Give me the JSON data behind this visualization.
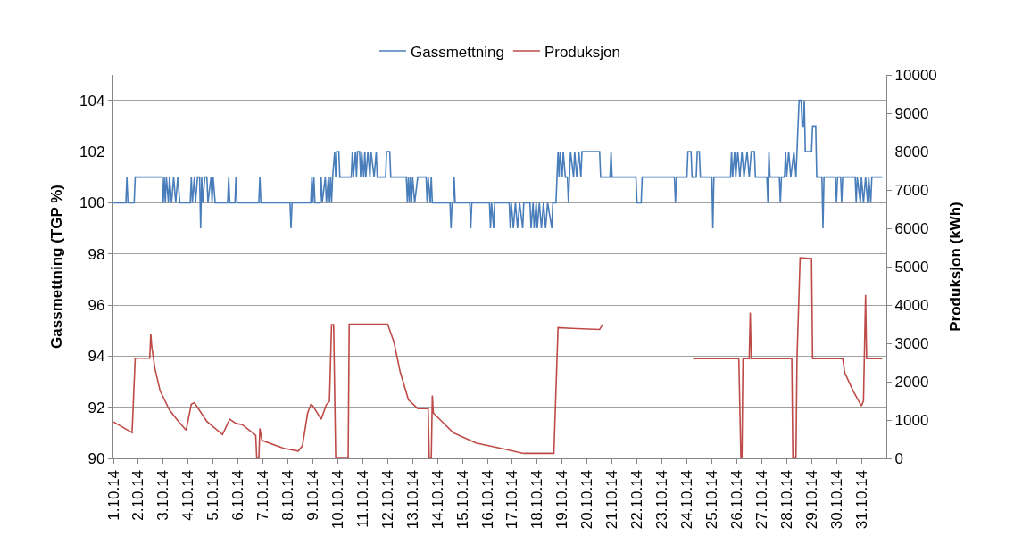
{
  "chart_data": {
    "type": "line",
    "ylabel": "Gassmettning (TGP %)",
    "y2label": "Produksjon (kWh)",
    "xlim": [
      "--10-01",
      "--11-01"
    ],
    "ylim": [
      90,
      105
    ],
    "y2lim": [
      0,
      10000
    ],
    "yticks": [
      90,
      92,
      94,
      96,
      98,
      100,
      102,
      104
    ],
    "y2ticks": [
      0,
      1000,
      2000,
      3000,
      4000,
      5000,
      6000,
      7000,
      8000,
      9000,
      10000
    ],
    "xticks": [
      {
        "value": "--10-01",
        "label": "1.10.14"
      },
      {
        "value": "--10-02",
        "label": "2.10.14"
      },
      {
        "value": "--10-03",
        "label": "3.10.14"
      },
      {
        "value": "--10-04",
        "label": "4.10.14"
      },
      {
        "value": "--10-05",
        "label": "5.10.14"
      },
      {
        "value": "--10-06",
        "label": "6.10.14"
      },
      {
        "value": "--10-07",
        "label": "7.10.14"
      },
      {
        "value": "--10-08",
        "label": "8.10.14"
      },
      {
        "value": "--10-09",
        "label": "9.10.14"
      },
      {
        "value": "--10-10",
        "label": "10.10.14"
      },
      {
        "value": "--10-11",
        "label": "11.10.14"
      },
      {
        "value": "--10-12",
        "label": "12.10.14"
      },
      {
        "value": "--10-13",
        "label": "13.10.14"
      },
      {
        "value": "--10-14",
        "label": "14.10.14"
      },
      {
        "value": "--10-15",
        "label": "15.10.14"
      },
      {
        "value": "--10-16",
        "label": "16.10.14"
      },
      {
        "value": "--10-17",
        "label": "17.10.14"
      },
      {
        "value": "--10-18",
        "label": "18.10.14"
      },
      {
        "value": "--10-19",
        "label": "19.10.14"
      },
      {
        "value": "--10-20",
        "label": "20.10.14"
      },
      {
        "value": "--10-21",
        "label": "21.10.14"
      },
      {
        "value": "--10-22",
        "label": "22.10.14"
      },
      {
        "value": "--10-23",
        "label": "23.10.14"
      },
      {
        "value": "--10-24",
        "label": "24.10.14"
      },
      {
        "value": "--10-25",
        "label": "25.10.14"
      },
      {
        "value": "--10-26",
        "label": "26.10.14"
      },
      {
        "value": "--10-27",
        "label": "27.10.14"
      },
      {
        "value": "--10-28",
        "label": "28.10.14"
      },
      {
        "value": "--10-29",
        "label": "29.10.14"
      },
      {
        "value": "--10-30",
        "label": "30.10.14"
      },
      {
        "value": "--10-31",
        "label": "31.10.14"
      }
    ],
    "grid": "y",
    "legend": "top",
    "marker": "none",
    "line_style": "solid",
    "series": [
      {
        "name": "Gassmettning",
        "color": "#4a7ebb",
        "x": [
          "--10-01T00:00",
          "--10-01T12:00",
          "--10-01T13:00",
          "--10-01T14:00",
          "--10-01T20:00",
          "--10-01T21:00",
          "--10-02T23:00",
          "--10-03T00:00",
          "--10-03T01:00",
          "--10-03T02:00",
          "--10-03T03:00",
          "--10-03T05:00",
          "--10-03T06:00",
          "--10-03T08:00",
          "--10-03T10:00",
          "--10-03T12:00",
          "--10-03T14:00",
          "--10-03T16:00",
          "--10-04T02:00",
          "--10-04T03:00",
          "--10-04T04:00",
          "--10-04T06:00",
          "--10-04T07:00",
          "--10-04T09:00",
          "--10-04T11:00",
          "--10-04T12:00",
          "--10-04T13:00",
          "--10-04T14:00",
          "--10-04T16:00",
          "--10-04T18:00",
          "--10-04T19:00",
          "--10-04T22:00",
          "--10-04T23:00",
          "--10-05T00:00",
          "--10-05T02:00",
          "--10-05T14:00",
          "--10-05T15:00",
          "--10-05T16:00",
          "--10-05T21:00",
          "--10-05T22:00",
          "--10-05T23:00",
          "--10-06T20:00",
          "--10-06T21:00",
          "--10-06T22:00",
          "--10-08T02:00",
          "--10-08T03:00",
          "--10-08T04:00",
          "--10-08T22:00",
          "--10-08T23:00",
          "--10-09T00:00",
          "--10-09T01:00",
          "--10-09T02:00",
          "--10-09T07:00",
          "--10-09T08:00",
          "--10-09T09:00",
          "--10-09T12:00",
          "--10-09T13:00",
          "--10-09T15:00",
          "--10-09T16:00",
          "--10-09T17:00",
          "--10-09T18:00",
          "--10-09T19:00",
          "--10-09T21:00",
          "--10-09T22:00",
          "--10-09T23:00",
          "--10-10T01:00",
          "--10-10T02:00",
          "--10-10T13:00",
          "--10-10T14:00",
          "--10-10T15:00",
          "--10-10T17:00",
          "--10-10T18:00",
          "--10-10T19:00",
          "--10-10T21:00",
          "--10-10T22:00",
          "--10-10T23:00",
          "--10-11T01:00",
          "--10-11T02:00",
          "--10-11T03:00",
          "--10-11T05:00",
          "--10-11T07:00",
          "--10-11T08:00",
          "--10-11T11:00",
          "--10-11T13:00",
          "--10-11T14:00",
          "--10-11T22:00",
          "--10-11T23:00",
          "--10-12T02:00",
          "--10-12T03:00",
          "--10-12T18:00",
          "--10-12T19:00",
          "--10-12T20:00",
          "--10-12T21:00",
          "--10-12T22:00",
          "--10-12T23:00",
          "--10-13T00:00",
          "--10-13T02:00",
          "--10-13T05:00",
          "--10-13T13:00",
          "--10-13T14:00",
          "--10-13T15:00",
          "--10-13T17:00",
          "--10-13T18:00",
          "--10-13T19:00",
          "--10-14T12:00",
          "--10-14T13:00",
          "--10-14T14:00",
          "--10-14T15:00",
          "--10-14T16:00",
          "--10-14T17:00",
          "--10-15T07:00",
          "--10-15T08:00",
          "--10-15T09:00",
          "--10-16T02:00",
          "--10-16T03:00",
          "--10-16T04:00",
          "--10-16T06:00",
          "--10-16T07:00",
          "--10-16T21:00",
          "--10-16T22:00",
          "--10-16T23:00",
          "--10-17T01:00",
          "--10-17T03:00",
          "--10-17T05:00",
          "--10-17T07:00",
          "--10-17T10:00",
          "--10-17T11:00",
          "--10-17T17:00",
          "--10-17T18:00",
          "--10-17T20:00",
          "--10-17T21:00",
          "--10-17T23:00",
          "--10-18T00:00",
          "--10-18T02:00",
          "--10-18T04:00",
          "--10-18T06:00",
          "--10-18T08:00",
          "--10-18T10:00",
          "--10-18T14:00",
          "--10-18T15:00",
          "--10-18T18:00",
          "--10-18T20:00",
          "--10-18T21:00",
          "--10-18T22:00",
          "--10-19T00:00",
          "--10-19T01:00",
          "--10-19T03:00",
          "--10-19T05:00",
          "--10-19T06:00",
          "--10-19T07:00",
          "--10-19T08:00",
          "--10-19T11:00",
          "--10-19T12:00",
          "--10-19T14:00",
          "--10-19T16:00",
          "--10-19T18:00",
          "--10-19T19:00",
          "--10-20T12:00",
          "--10-20T13:00",
          "--10-20T22:00",
          "--10-20T23:00",
          "--10-21T00:00",
          "--10-21T23:00",
          "--10-22T00:00",
          "--10-22T04:00",
          "--10-22T05:00",
          "--10-23T12:00",
          "--10-23T13:00",
          "--10-23T14:00",
          "--10-24T00:00",
          "--10-24T01:00",
          "--10-24T04:00",
          "--10-24T05:00",
          "--10-24T09:00",
          "--10-24T10:00",
          "--10-24T12:00",
          "--10-24T13:00",
          "--10-25T00:00",
          "--10-25T01:00",
          "--10-25T02:00",
          "--10-25T18:00",
          "--10-25T19:00",
          "--10-25T20:00",
          "--10-25T22:00",
          "--10-25T23:00",
          "--10-26T01:00",
          "--10-26T03:00",
          "--10-26T05:00",
          "--10-26T07:00",
          "--10-26T10:00",
          "--10-26T12:00",
          "--10-26T14:00",
          "--10-26T17:00",
          "--10-26T18:00",
          "--10-27T05:00",
          "--10-27T06:00",
          "--10-27T07:00",
          "--10-27T08:00",
          "--10-27T17:00",
          "--10-27T18:00",
          "--10-27T19:00",
          "--10-27T22:00",
          "--10-27T23:00",
          "--10-28T00:00",
          "--10-28T02:00",
          "--10-28T04:00",
          "--10-28T07:00",
          "--10-28T09:00",
          "--10-28T10:00",
          "--10-28T12:00",
          "--10-28T14:00",
          "--10-28T15:00",
          "--10-28T16:00",
          "--10-28T17:00",
          "--10-28T18:00",
          "--10-29T00:00",
          "--10-29T01:00",
          "--10-29T04:00",
          "--10-29T05:00",
          "--10-29T10:00",
          "--10-29T11:00",
          "--10-29T12:00",
          "--10-29T23:00",
          "--10-30T00:00",
          "--10-30T01:00",
          "--10-30T04:00",
          "--10-30T05:00",
          "--10-30T06:00",
          "--10-30T18:00",
          "--10-30T19:00",
          "--10-30T20:00",
          "--10-30T23:00",
          "--10-31T00:00",
          "--10-31T02:00",
          "--10-31T04:00",
          "--10-31T06:00",
          "--10-31T07:00",
          "--10-31T09:00",
          "--10-31T10:00",
          "--10-31T20:00"
        ],
        "values": [
          100,
          100,
          101,
          100,
          100,
          101,
          101,
          100,
          101,
          100,
          101,
          100,
          101,
          100,
          101,
          100,
          101,
          100,
          100,
          101,
          100,
          101,
          100,
          101,
          101,
          99,
          101,
          100,
          101,
          101,
          100,
          101,
          100,
          101,
          100,
          100,
          101,
          100,
          100,
          101,
          100,
          100,
          101,
          100,
          100,
          99,
          100,
          100,
          101,
          100,
          101,
          100,
          100,
          101,
          100,
          101,
          100,
          101,
          100,
          101,
          100,
          101,
          102,
          101,
          102,
          102,
          101,
          101,
          102,
          101,
          102,
          101,
          102,
          102,
          101,
          102,
          101,
          102,
          101,
          102,
          101,
          102,
          101,
          102,
          101,
          101,
          102,
          102,
          101,
          101,
          100,
          101,
          100,
          101,
          100,
          101,
          100,
          101,
          101,
          100,
          101,
          100,
          101,
          100,
          100,
          99,
          100,
          100,
          101,
          100,
          100,
          99,
          100,
          100,
          99,
          100,
          99,
          100,
          100,
          99,
          100,
          99,
          100,
          99,
          100,
          99,
          100,
          100,
          99,
          100,
          99,
          100,
          99,
          100,
          99,
          100,
          99,
          100,
          99,
          100,
          100,
          102,
          101,
          102,
          101,
          102,
          101,
          101,
          100,
          101,
          102,
          101,
          102,
          101,
          102,
          101,
          102,
          102,
          101,
          101,
          102,
          101,
          101,
          100,
          100,
          101,
          101,
          100,
          101,
          101,
          102,
          102,
          101,
          101,
          102,
          102,
          101,
          101,
          99,
          101,
          101,
          102,
          101,
          102,
          101,
          102,
          101,
          102,
          101,
          102,
          101,
          102,
          102,
          101,
          101,
          100,
          102,
          101,
          101,
          100,
          101,
          101,
          102,
          101,
          102,
          101,
          102,
          101,
          102,
          104,
          104,
          103,
          103,
          104,
          102,
          102,
          103,
          103,
          101,
          101,
          99,
          101,
          101,
          100,
          101,
          101,
          100,
          101,
          101,
          100,
          101,
          100,
          101,
          100,
          101,
          100,
          101,
          100,
          101,
          101
        ]
      },
      {
        "name": "Produksjon",
        "color": "#be4b48",
        "axis": "y2",
        "x": [
          "--10-01T00:00",
          "--10-01T18:00",
          "--10-01T21:00",
          "--10-02T11:00",
          "--10-02T12:00",
          "--10-02T13:00",
          "--10-02T16:00",
          "--10-02T21:00",
          "--10-03T06:00",
          "--10-03T13:00",
          "--10-03T22:00",
          "--10-04T03:00",
          "--10-04T06:00",
          "--10-04T18:00",
          "--10-05T09:00",
          "--10-05T16:00",
          "--10-05T22:00",
          "--10-06T04:00",
          "--10-06T17:00",
          "--10-06T18:00",
          "--10-06T20:00",
          "--10-06T21:00",
          "--10-06T23:00",
          "--10-07T20:00",
          "--10-08T10:00",
          "--10-08T14:00",
          "--10-08T19:00",
          "--10-08T22:00",
          "--10-09T00:00",
          "--10-09T08:00",
          "--10-09T13:00",
          "--10-09T16:00",
          "--10-09T18:00",
          "--10-09T20:00",
          "--10-09T22:00",
          "--10-10T10:00",
          "--10-10T11:00",
          "--10-12T00:00",
          "--10-12T06:00",
          "--10-12T12:00",
          "--10-12T20:00",
          "--10-13T05:00",
          "--10-13T15:00",
          "--10-13T16:00",
          "--10-13T18:00",
          "--10-13T19:00",
          "--10-13T20:00",
          "--10-14T15:00",
          "--10-15T13:00",
          "--10-16T15:00",
          "--10-17T11:00",
          "--10-18T16:00",
          "--10-18T20:00",
          "--10-19T09:00",
          "--10-20T12:00",
          "--10-20T15:00",
          "--10-22T12:00",
          "--10-24T06:00",
          "--10-26T02:00",
          "--10-26T04:00",
          "--10-26T05:00",
          "--10-26T06:00",
          "--10-26T12:00",
          "--10-26T13:00",
          "--10-26T14:00",
          "--10-28T05:00",
          "--10-28T06:00",
          "--10-28T09:00",
          "--10-28T10:00",
          "--10-28T13:00",
          "--10-29T00:00",
          "--10-29T01:00",
          "--10-30T06:00",
          "--10-30T08:00",
          "--10-30T16:00",
          "--10-31T00:00",
          "--10-31T02:00",
          "--10-31T04:00",
          "--10-31T05:00",
          "--10-31T20:00"
        ],
        "values": [
          950,
          670,
          2610,
          2610,
          3250,
          2900,
          2340,
          1760,
          1260,
          1020,
          730,
          1410,
          1450,
          960,
          620,
          1020,
          910,
          880,
          600,
          0,
          0,
          780,
          470,
          260,
          190,
          330,
          1180,
          1400,
          1370,
          1020,
          1400,
          1490,
          3490,
          3490,
          0,
          0,
          3500,
          3500,
          3040,
          2260,
          1530,
          1300,
          1300,
          0,
          0,
          1640,
          1180,
          670,
          400,
          250,
          130,
          130,
          3410,
          3390,
          3360,
          3490,
          null,
          2600,
          2600,
          0,
          0,
          2600,
          2600,
          3800,
          2600,
          2600,
          0,
          0,
          2600,
          5230,
          5210,
          2600,
          2600,
          2230,
          1760,
          1370,
          1500,
          4260,
          2600,
          2600
        ]
      }
    ]
  }
}
